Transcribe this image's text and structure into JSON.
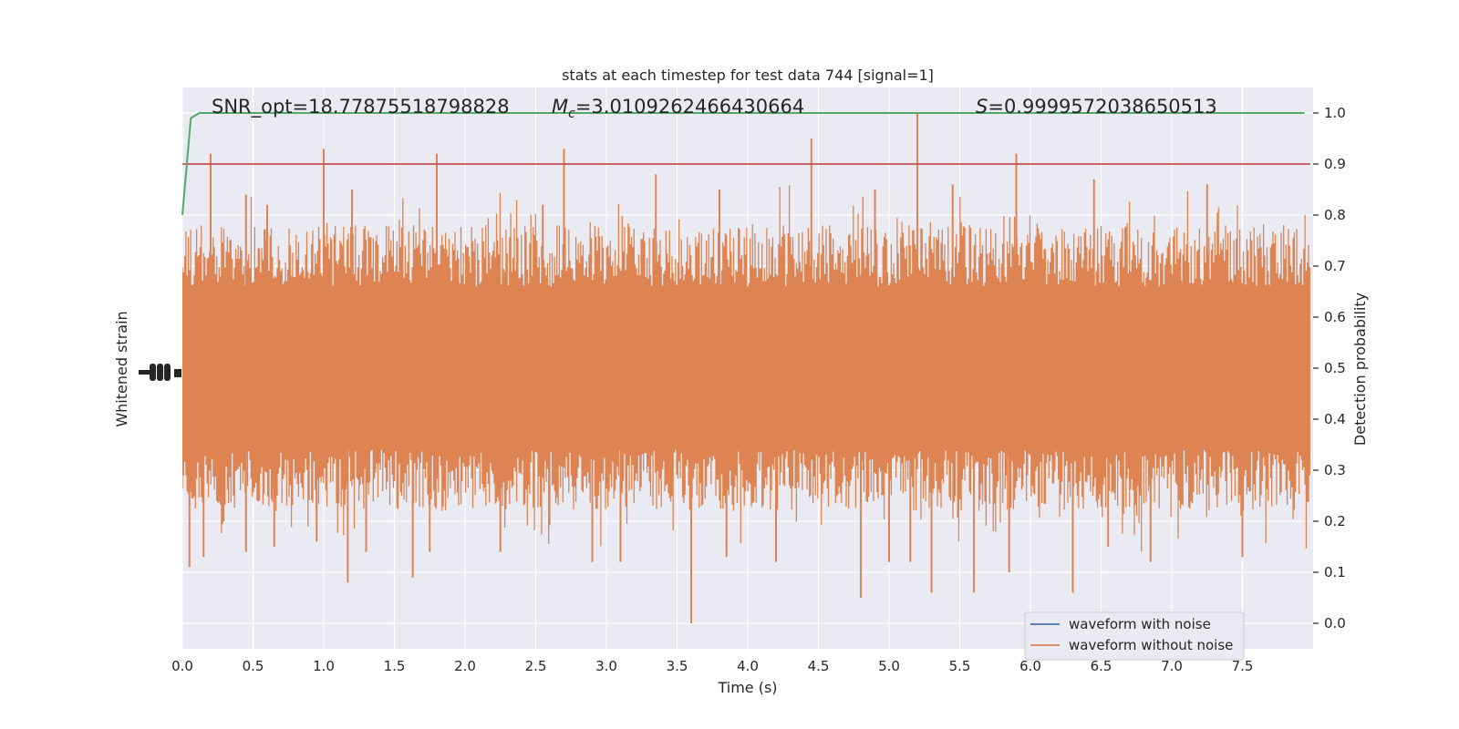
{
  "chart_data": {
    "type": "line",
    "title": "stats at each timestep for test data 744 [signal=1]",
    "xlabel": "Time (s)",
    "ylabel_left": "Whitened strain",
    "ylabel_right": "Detection probability",
    "xlim": [
      0.0,
      8.0
    ],
    "ylim_right": [
      -0.05,
      1.05
    ],
    "x_ticks": [
      "0.0",
      "0.5",
      "1.0",
      "1.5",
      "2.0",
      "2.5",
      "3.0",
      "3.5",
      "4.0",
      "4.5",
      "5.0",
      "5.5",
      "6.0",
      "6.5",
      "7.0",
      "7.5"
    ],
    "y_ticks_right": [
      "0.0",
      "0.1",
      "0.2",
      "0.3",
      "0.4",
      "0.5",
      "0.6",
      "0.7",
      "0.8",
      "0.9",
      "1.0"
    ],
    "grid": true,
    "legend_position": "bottom-right",
    "annotations": {
      "snr": "SNR_opt=18.77875518798828",
      "mc_symbol": "M",
      "mc_sub": "c",
      "mc_value": "=3.0109262466430664",
      "s_symbol": "S",
      "s_value": "=0.9999572038650513"
    },
    "threshold": 0.9,
    "detection_probability": {
      "x": [
        0.0,
        0.06,
        0.12,
        0.25,
        1.0,
        2.0,
        3.0,
        4.0,
        5.0,
        6.0,
        7.0,
        7.94
      ],
      "y": [
        0.8,
        0.99,
        1.0,
        1.0,
        1.0,
        1.0,
        1.0,
        1.0,
        1.0,
        1.0,
        1.0,
        1.0
      ]
    },
    "noise_band": {
      "core_low": 0.4,
      "core_high": 0.6
    },
    "peaks": [
      [
        0.2,
        0.92
      ],
      [
        0.45,
        0.84
      ],
      [
        0.6,
        0.82
      ],
      [
        1.0,
        0.93
      ],
      [
        1.2,
        0.85
      ],
      [
        1.8,
        0.92
      ],
      [
        2.55,
        0.82
      ],
      [
        2.7,
        0.93
      ],
      [
        3.35,
        0.88
      ],
      [
        3.8,
        0.85
      ],
      [
        4.45,
        0.95
      ],
      [
        4.9,
        0.85
      ],
      [
        5.2,
        1.0
      ],
      [
        5.45,
        0.86
      ],
      [
        5.9,
        0.92
      ],
      [
        6.45,
        0.87
      ],
      [
        7.25,
        0.86
      ]
    ],
    "troughs": [
      [
        0.05,
        0.11
      ],
      [
        0.15,
        0.13
      ],
      [
        0.45,
        0.14
      ],
      [
        0.65,
        0.15
      ],
      [
        0.95,
        0.16
      ],
      [
        1.17,
        0.08
      ],
      [
        1.3,
        0.14
      ],
      [
        1.63,
        0.09
      ],
      [
        1.75,
        0.14
      ],
      [
        2.25,
        0.14
      ],
      [
        2.9,
        0.12
      ],
      [
        3.1,
        0.12
      ],
      [
        3.6,
        0.0
      ],
      [
        3.85,
        0.13
      ],
      [
        4.2,
        0.12
      ],
      [
        4.8,
        0.05
      ],
      [
        5.0,
        0.12
      ],
      [
        5.15,
        0.12
      ],
      [
        5.3,
        0.06
      ],
      [
        5.6,
        0.06
      ],
      [
        5.85,
        0.1
      ],
      [
        6.3,
        0.06
      ],
      [
        6.55,
        0.15
      ],
      [
        6.85,
        0.12
      ],
      [
        7.5,
        0.13
      ]
    ],
    "series": [
      {
        "name": "waveform with noise",
        "color": "#4c72b0"
      },
      {
        "name": "waveform without noise",
        "color": "#dd8452"
      },
      {
        "color": "#55a868"
      },
      {
        "color": "#c44e52"
      }
    ],
    "colors": {
      "axes_bg": "#eaeaf2",
      "grid": "#ffffff"
    }
  }
}
